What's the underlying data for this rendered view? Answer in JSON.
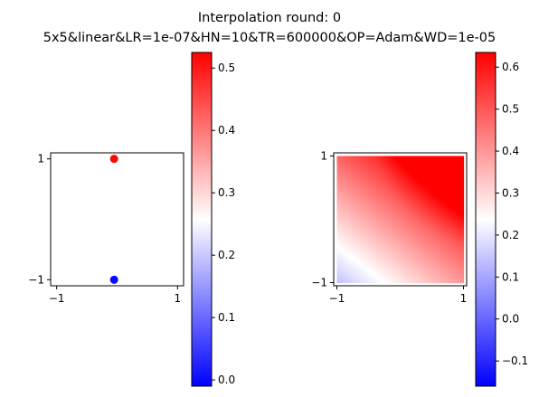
{
  "figure": {
    "title_line1": "Interpolation round: 0",
    "title_line2": "5x5&linear&LR=1e-07&HN=10&TR=600000&OP=Adam&WD=1e-05"
  },
  "chart_data": [
    {
      "type": "scatter",
      "title": "",
      "xlim": [
        -1.1,
        1.1
      ],
      "ylim": [
        -1.1,
        1.1
      ],
      "x_ticks": [
        "−1",
        "1"
      ],
      "y_ticks": [
        "−1",
        "1"
      ],
      "points": [
        {
          "x": -0.05,
          "y": 1.0,
          "value": 0.52
        },
        {
          "x": -0.05,
          "y": -1.0,
          "value": 0.0
        }
      ],
      "colormap": "bwr",
      "colorbar": {
        "range": [
          -0.01,
          0.525
        ],
        "ticks": [
          "0.0",
          "0.1",
          "0.2",
          "0.3",
          "0.4",
          "0.5"
        ]
      }
    },
    {
      "type": "heatmap",
      "title": "",
      "xlim": [
        -1.05,
        1.05
      ],
      "ylim": [
        -1.05,
        1.05
      ],
      "x_ticks": [
        "−1",
        "1"
      ],
      "y_ticks": [
        "−1",
        "1"
      ],
      "colormap": "bwr",
      "colorbar": {
        "range": [
          -0.16,
          0.635
        ],
        "ticks": [
          "−0.1",
          "0.0",
          "0.1",
          "0.2",
          "0.3",
          "0.4",
          "0.5",
          "0.6"
        ]
      }
    }
  ],
  "colors": {
    "low": "#0000ff",
    "mid": "#ffffff",
    "high": "#ff0000"
  }
}
